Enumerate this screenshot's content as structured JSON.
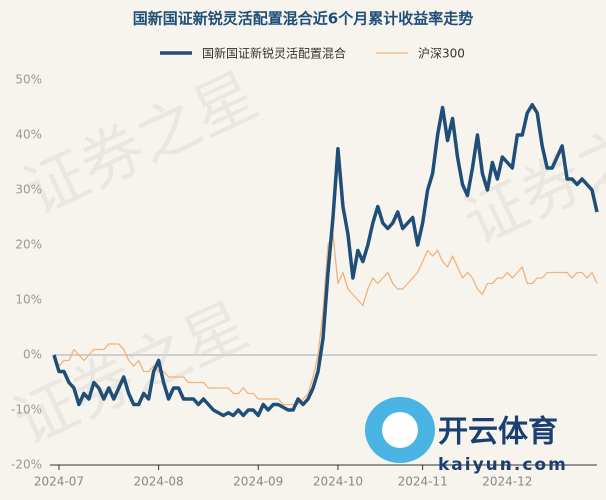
{
  "chart_data": {
    "type": "line",
    "title": "国新国证新锐灵活配置混合近6个月累计收益率走势",
    "categories": [
      null,
      "2024-07",
      null,
      null,
      null,
      null,
      null,
      null,
      null,
      null,
      null,
      null,
      null,
      null,
      null,
      null,
      null,
      null,
      null,
      null,
      null,
      "2024-08",
      null,
      null,
      null,
      null,
      null,
      null,
      null,
      null,
      null,
      null,
      null,
      null,
      null,
      null,
      null,
      null,
      null,
      null,
      null,
      "2024-09",
      null,
      null,
      null,
      null,
      null,
      null,
      null,
      null,
      null,
      null,
      null,
      null,
      null,
      null,
      null,
      "2024-10",
      null,
      null,
      null,
      null,
      null,
      null,
      null,
      null,
      null,
      null,
      null,
      null,
      null,
      null,
      null,
      null,
      "2024-11",
      null,
      null,
      null,
      null,
      null,
      null,
      null,
      null,
      null,
      null,
      null,
      null,
      null,
      null,
      null,
      null,
      "2024-12",
      null,
      null,
      null,
      null,
      null,
      null,
      null,
      null,
      null,
      null,
      null,
      null,
      null,
      null,
      null,
      null,
      null,
      null
    ],
    "series": [
      {
        "name": "国新国证新锐灵活配置混合",
        "color": "#1f4e79",
        "width": 3.5,
        "values": [
          0,
          -3,
          -3,
          -5,
          -6,
          -9,
          -7,
          -8,
          -5,
          -6,
          -8,
          -6,
          -8,
          -6,
          -4,
          -7,
          -9,
          -9,
          -7,
          -8,
          -3,
          -1,
          -5,
          -8,
          -6,
          -6,
          -8,
          -8,
          -8,
          -9,
          -8,
          -9,
          -10,
          -10.5,
          -11,
          -10.5,
          -11,
          -10,
          -11,
          -10,
          -10,
          -11,
          -9,
          -10,
          -9,
          -9,
          -9.5,
          -10,
          -10,
          -8,
          -9,
          -8,
          -6,
          -3,
          3,
          15,
          25,
          37.5,
          27,
          22,
          14,
          19,
          17,
          20,
          24,
          27,
          24,
          23,
          24,
          26,
          23,
          24,
          25,
          20,
          24,
          30,
          33,
          40,
          45,
          39,
          43,
          36,
          31,
          29,
          34,
          40,
          33,
          30,
          35,
          32,
          36,
          35,
          34,
          40,
          40,
          44,
          45.5,
          44,
          38,
          34,
          34,
          36,
          38,
          32,
          32,
          31,
          32,
          31,
          30,
          26
        ]
      },
      {
        "name": "沪深300",
        "color": "#f0b27a",
        "width": 1.3,
        "values": [
          0,
          -2,
          -1,
          -1,
          1,
          0,
          -1,
          0,
          1,
          1,
          1,
          2,
          2,
          2,
          1,
          -1,
          -2,
          -1,
          -3,
          -3,
          -2,
          -3,
          -3,
          -4,
          -4,
          -4,
          -4,
          -5,
          -5,
          -5,
          -5,
          -6,
          -6,
          -6,
          -6,
          -6,
          -7,
          -7,
          -6,
          -7,
          -7,
          -8,
          -8,
          -8,
          -8,
          -8,
          -9,
          -9,
          -9,
          -9,
          -8,
          -7,
          -4,
          0,
          8,
          20,
          22,
          13,
          15,
          12,
          11,
          10,
          9,
          12,
          14,
          13,
          14,
          15,
          13,
          12,
          12,
          13,
          14,
          15,
          17,
          19,
          18,
          19,
          17,
          16,
          18,
          16,
          14,
          15,
          14,
          12,
          11,
          13,
          13,
          14,
          14,
          15,
          14,
          15,
          16,
          13,
          13,
          14,
          14,
          15,
          15,
          15,
          15,
          15,
          14,
          15,
          15,
          14,
          15,
          13
        ]
      }
    ],
    "ylim": [
      -20,
      50
    ],
    "yticks": [
      {
        "value": -20,
        "label": "-20%"
      },
      {
        "value": -10,
        "label": "-10%"
      },
      {
        "value": 0,
        "label": "0%"
      },
      {
        "value": 10,
        "label": "10%"
      },
      {
        "value": 20,
        "label": "20%"
      },
      {
        "value": 30,
        "label": "30%"
      },
      {
        "value": 40,
        "label": "40%"
      },
      {
        "value": 50,
        "label": "50%"
      }
    ],
    "grid": false
  },
  "watermark": {
    "text": "证券之星",
    "logo": "开云体育",
    "url": "kaiyun.com"
  }
}
